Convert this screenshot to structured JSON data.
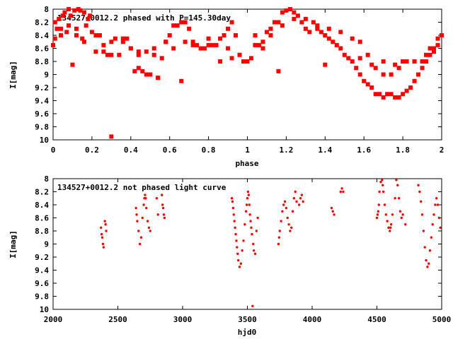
{
  "colors": {
    "marker": "#ff0000",
    "axes": "#000000",
    "background": "#ffffff"
  },
  "chart_data": [
    {
      "type": "scatter",
      "title": "134527+0012.2 phased with P=145.30day",
      "xlabel": "phase",
      "ylabel": "I[mag]",
      "xlim": [
        0,
        2
      ],
      "ylim": [
        10,
        8
      ],
      "y_inverted": true,
      "grid": false,
      "marker": "star",
      "xticks": [
        "0",
        "0.2",
        "0.4",
        "0.6",
        "0.8",
        "1",
        "1.2",
        "1.4",
        "1.6",
        "1.8",
        "2"
      ],
      "yticks": [
        "8",
        "8.2",
        "8.4",
        "8.6",
        "8.8",
        "9",
        "9.2",
        "9.4",
        "9.6",
        "9.8",
        "10"
      ],
      "series": [
        {
          "x": [
            0.0,
            0.01,
            0.01,
            0.02,
            0.03,
            0.04,
            0.05,
            0.06,
            0.07,
            0.08,
            0.09,
            0.1,
            0.11,
            0.12,
            0.13,
            0.14,
            0.15,
            0.16,
            0.17,
            0.18,
            0.19,
            0.2,
            0.22,
            0.24,
            0.26,
            0.28,
            0.3,
            0.32,
            0.34,
            0.36,
            0.38,
            0.4,
            0.42,
            0.44,
            0.46,
            0.48,
            0.5,
            0.52,
            0.54,
            0.56,
            0.58,
            0.6,
            0.62,
            0.64,
            0.66,
            0.68,
            0.7,
            0.72,
            0.74,
            0.76,
            0.78,
            0.8,
            0.82,
            0.84,
            0.86,
            0.88,
            0.9,
            0.92,
            0.94,
            0.96,
            0.98,
            1.0,
            1.02,
            1.04,
            1.06,
            1.08,
            1.1,
            1.12,
            1.14,
            1.16,
            1.18,
            1.2,
            1.22,
            1.24,
            1.26,
            1.28,
            1.3,
            1.32,
            1.34,
            1.36,
            1.38,
            1.4,
            1.42,
            1.44,
            1.46,
            1.48,
            1.5,
            1.52,
            1.54,
            1.56,
            1.58,
            1.6,
            1.62,
            1.64,
            1.66,
            1.68,
            1.7,
            1.72,
            1.74,
            1.76,
            1.78,
            1.8,
            1.82,
            1.84,
            1.86,
            1.88,
            1.9,
            1.92,
            1.94,
            1.96,
            1.98,
            2.0
          ],
          "y": [
            8.55,
            8.45,
            8.2,
            8.3,
            8.15,
            8.4,
            8.1,
            8.05,
            8.35,
            8.0,
            8.1,
            8.85,
            8.02,
            8.3,
            8.0,
            8.02,
            8.45,
            8.05,
            8.25,
            8.15,
            8.1,
            8.35,
            8.4,
            8.4,
            8.55,
            8.7,
            8.5,
            8.45,
            8.7,
            8.5,
            8.45,
            8.6,
            8.95,
            8.9,
            8.95,
            9.0,
            9.0,
            8.7,
            9.05,
            8.75,
            8.5,
            8.4,
            8.6,
            8.25,
            8.2,
            8.2,
            8.3,
            8.5,
            8.55,
            8.6,
            8.6,
            8.55,
            8.55,
            8.55,
            8.45,
            8.4,
            8.3,
            8.2,
            8.4,
            8.7,
            8.8,
            8.8,
            8.75,
            8.4,
            8.55,
            8.6,
            8.35,
            8.3,
            8.2,
            8.2,
            8.05,
            8.02,
            8.0,
            8.05,
            8.1,
            8.2,
            8.3,
            8.35,
            8.2,
            8.3,
            8.35,
            8.4,
            8.45,
            8.5,
            8.55,
            8.6,
            8.7,
            8.75,
            8.8,
            8.9,
            9.0,
            9.1,
            9.15,
            9.2,
            9.3,
            9.3,
            9.35,
            9.3,
            9.3,
            9.35,
            9.35,
            9.3,
            9.25,
            9.2,
            9.1,
            9.0,
            8.9,
            8.8,
            8.7,
            8.65,
            8.55,
            8.4
          ]
        },
        {
          "x": [
            0.04,
            0.08,
            0.12,
            0.16,
            0.22,
            0.26,
            0.3,
            0.36,
            0.4,
            0.44,
            0.48,
            0.52,
            0.58,
            0.62,
            0.68,
            0.72,
            0.8,
            0.86,
            0.92,
            0.98,
            1.04,
            1.08,
            1.12,
            1.18,
            1.24,
            1.3,
            1.36,
            1.42,
            1.48,
            1.54,
            1.58,
            1.62,
            1.66,
            1.7,
            1.74,
            1.78,
            1.82,
            1.86,
            1.9,
            1.94,
            1.98
          ],
          "y": [
            8.3,
            8.25,
            8.4,
            8.5,
            8.65,
            8.65,
            8.7,
            8.45,
            8.6,
            8.65,
            8.65,
            8.6,
            8.5,
            8.25,
            8.5,
            8.55,
            8.45,
            8.8,
            8.75,
            8.8,
            8.55,
            8.5,
            8.4,
            8.25,
            8.15,
            8.15,
            8.25,
            8.3,
            8.35,
            8.45,
            8.5,
            8.7,
            8.9,
            9.0,
            9.0,
            8.9,
            8.8,
            8.8,
            8.8,
            8.6,
            8.45
          ]
        },
        {
          "x": [
            0.3,
            0.44,
            0.54,
            0.66,
            0.9,
            1.16,
            1.4,
            1.58,
            1.64,
            1.7,
            1.76,
            1.8,
            1.86,
            1.92,
            1.96
          ],
          "y": [
            9.95,
            8.7,
            9.05,
            9.1,
            8.6,
            8.95,
            8.85,
            8.75,
            8.85,
            8.8,
            8.85,
            8.8,
            8.8,
            8.7,
            8.6
          ]
        }
      ]
    },
    {
      "type": "scatter",
      "title": "134527+0012.2 not phased light curve",
      "xlabel": "hjd0",
      "ylabel": "I[mag]",
      "xlim": [
        2000,
        5000
      ],
      "ylim": [
        10,
        8
      ],
      "y_inverted": true,
      "grid": false,
      "marker": "dot",
      "xticks": [
        "2000",
        "2500",
        "3000",
        "3500",
        "4000",
        "4500",
        "5000"
      ],
      "yticks": [
        "8",
        "8.2",
        "8.4",
        "8.6",
        "8.8",
        "9",
        "9.2",
        "9.4",
        "9.6",
        "9.8",
        "10"
      ],
      "series": [
        {
          "x": [
            2370,
            2375,
            2380,
            2385,
            2390,
            2400,
            2405,
            2410,
            2640,
            2645,
            2650,
            2660,
            2670,
            2680,
            2690,
            2700,
            2705,
            2710,
            2715,
            2720,
            2730,
            2740,
            2750,
            2800,
            2810,
            2840,
            2845,
            2850,
            2855,
            2860,
            3380,
            3385,
            3390,
            3395,
            3400,
            3405,
            3410,
            3415,
            3420,
            3425,
            3430,
            3440,
            3450,
            3460,
            3470,
            3480,
            3490,
            3495,
            3500,
            3505,
            3510,
            3515,
            3520,
            3525,
            3530,
            3535,
            3540,
            3545,
            3550,
            3560,
            3570,
            3580,
            3740,
            3745,
            3750,
            3760,
            3770,
            3780,
            3790,
            3800,
            3810,
            3820,
            3830,
            3840,
            3850,
            3860,
            3870,
            3880,
            3900,
            3910,
            3920,
            3930,
            4150,
            4160,
            4170,
            4220,
            4230,
            4240,
            4500,
            4505,
            4510,
            4515,
            4520,
            4530,
            4540,
            4545,
            4550,
            4560,
            4570,
            4580,
            4590,
            4600,
            4605,
            4610,
            4620,
            4640,
            4650,
            4660,
            4670,
            4680,
            4690,
            4700,
            4720,
            4820,
            4830,
            4840,
            4850,
            4860,
            4870,
            4880,
            4890,
            4900,
            4910,
            4920,
            4930,
            4940,
            4950,
            4960,
            4970,
            4980,
            4990
          ],
          "y": [
            8.75,
            8.85,
            8.9,
            9.0,
            9.05,
            8.65,
            8.7,
            8.8,
            8.45,
            8.55,
            8.65,
            8.8,
            9.0,
            8.9,
            8.6,
            8.4,
            8.3,
            8.25,
            8.3,
            8.45,
            8.65,
            8.75,
            8.8,
            8.3,
            8.55,
            8.25,
            8.4,
            8.45,
            8.55,
            8.6,
            8.3,
            8.35,
            8.45,
            8.55,
            8.65,
            8.75,
            8.85,
            8.95,
            9.05,
            9.15,
            9.25,
            9.35,
            9.3,
            9.1,
            8.95,
            8.7,
            8.5,
            8.4,
            8.3,
            8.2,
            8.25,
            8.4,
            8.55,
            8.65,
            8.75,
            8.85,
            9.95,
            9.0,
            9.1,
            9.15,
            8.8,
            8.6,
            9.0,
            8.9,
            8.8,
            8.65,
            8.5,
            8.4,
            8.35,
            8.45,
            8.6,
            8.7,
            8.8,
            8.75,
            8.5,
            8.3,
            8.2,
            8.35,
            8.4,
            8.3,
            8.25,
            8.35,
            8.45,
            8.5,
            8.55,
            8.2,
            8.15,
            8.2,
            8.6,
            8.55,
            8.5,
            8.4,
            8.2,
            8.05,
            8.02,
            8.1,
            8.2,
            8.4,
            8.55,
            8.65,
            8.75,
            8.8,
            8.75,
            8.7,
            8.55,
            8.3,
            8.02,
            8.1,
            8.3,
            8.5,
            8.6,
            8.55,
            8.7,
            8.1,
            8.2,
            8.35,
            8.55,
            8.8,
            9.05,
            9.25,
            9.35,
            9.3,
            9.1,
            8.9,
            8.7,
            8.55,
            8.4,
            8.3,
            8.4,
            8.6,
            8.75
          ]
        }
      ]
    }
  ]
}
